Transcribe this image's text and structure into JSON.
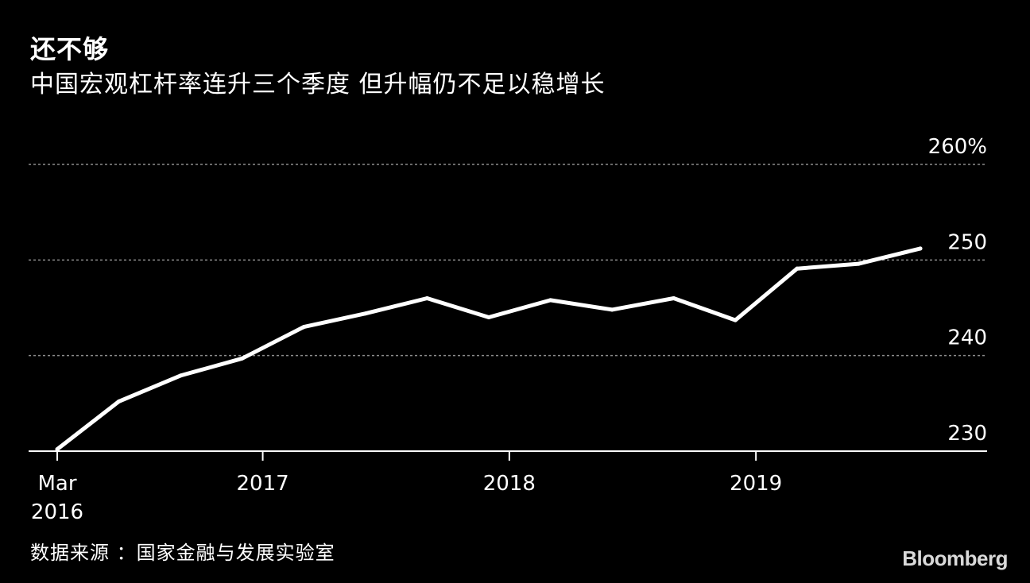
{
  "header": {
    "title": "还不够",
    "subtitle": "中国宏观杠杆率连升三个季度 但升幅仍不足以稳增长"
  },
  "footer": {
    "source": "数据来源 ：国家金融与发展实验室",
    "brand": "Bloomberg"
  },
  "colors": {
    "background": "#000000",
    "line": "#ffffff",
    "grid": "#8c8c8c",
    "text": "#ffffff"
  },
  "chart_data": {
    "type": "line",
    "title": "还不够",
    "subtitle": "中国宏观杠杆率连升三个季度 但升幅仍不足以稳增长",
    "xlabel": "",
    "ylabel": "",
    "ylim": [
      230,
      260
    ],
    "y_ticks": [
      {
        "value": 230,
        "label": "230"
      },
      {
        "value": 240,
        "label": "240"
      },
      {
        "value": 250,
        "label": "250"
      },
      {
        "value": 260,
        "label": "260%"
      }
    ],
    "x_ticks": [
      {
        "date": "2016-03",
        "lines": [
          "Mar",
          "2016"
        ]
      },
      {
        "date": "2017-01",
        "lines": [
          "2017"
        ]
      },
      {
        "date": "2018-01",
        "lines": [
          "2018"
        ]
      },
      {
        "date": "2019-01",
        "lines": [
          "2019"
        ]
      }
    ],
    "grid": true,
    "series": [
      {
        "x": [
          "2016-03",
          "2016-06",
          "2016-09",
          "2016-12",
          "2017-03",
          "2017-06",
          "2017-09",
          "2017-12",
          "2018-03",
          "2018-06",
          "2018-09",
          "2018-12",
          "2019-03",
          "2019-06",
          "2019-09"
        ],
        "values": [
          230.2,
          235.2,
          237.9,
          239.7,
          243.0,
          244.4,
          246.0,
          244.0,
          245.8,
          244.8,
          246.0,
          243.7,
          249.1,
          249.6,
          251.2
        ]
      }
    ]
  }
}
